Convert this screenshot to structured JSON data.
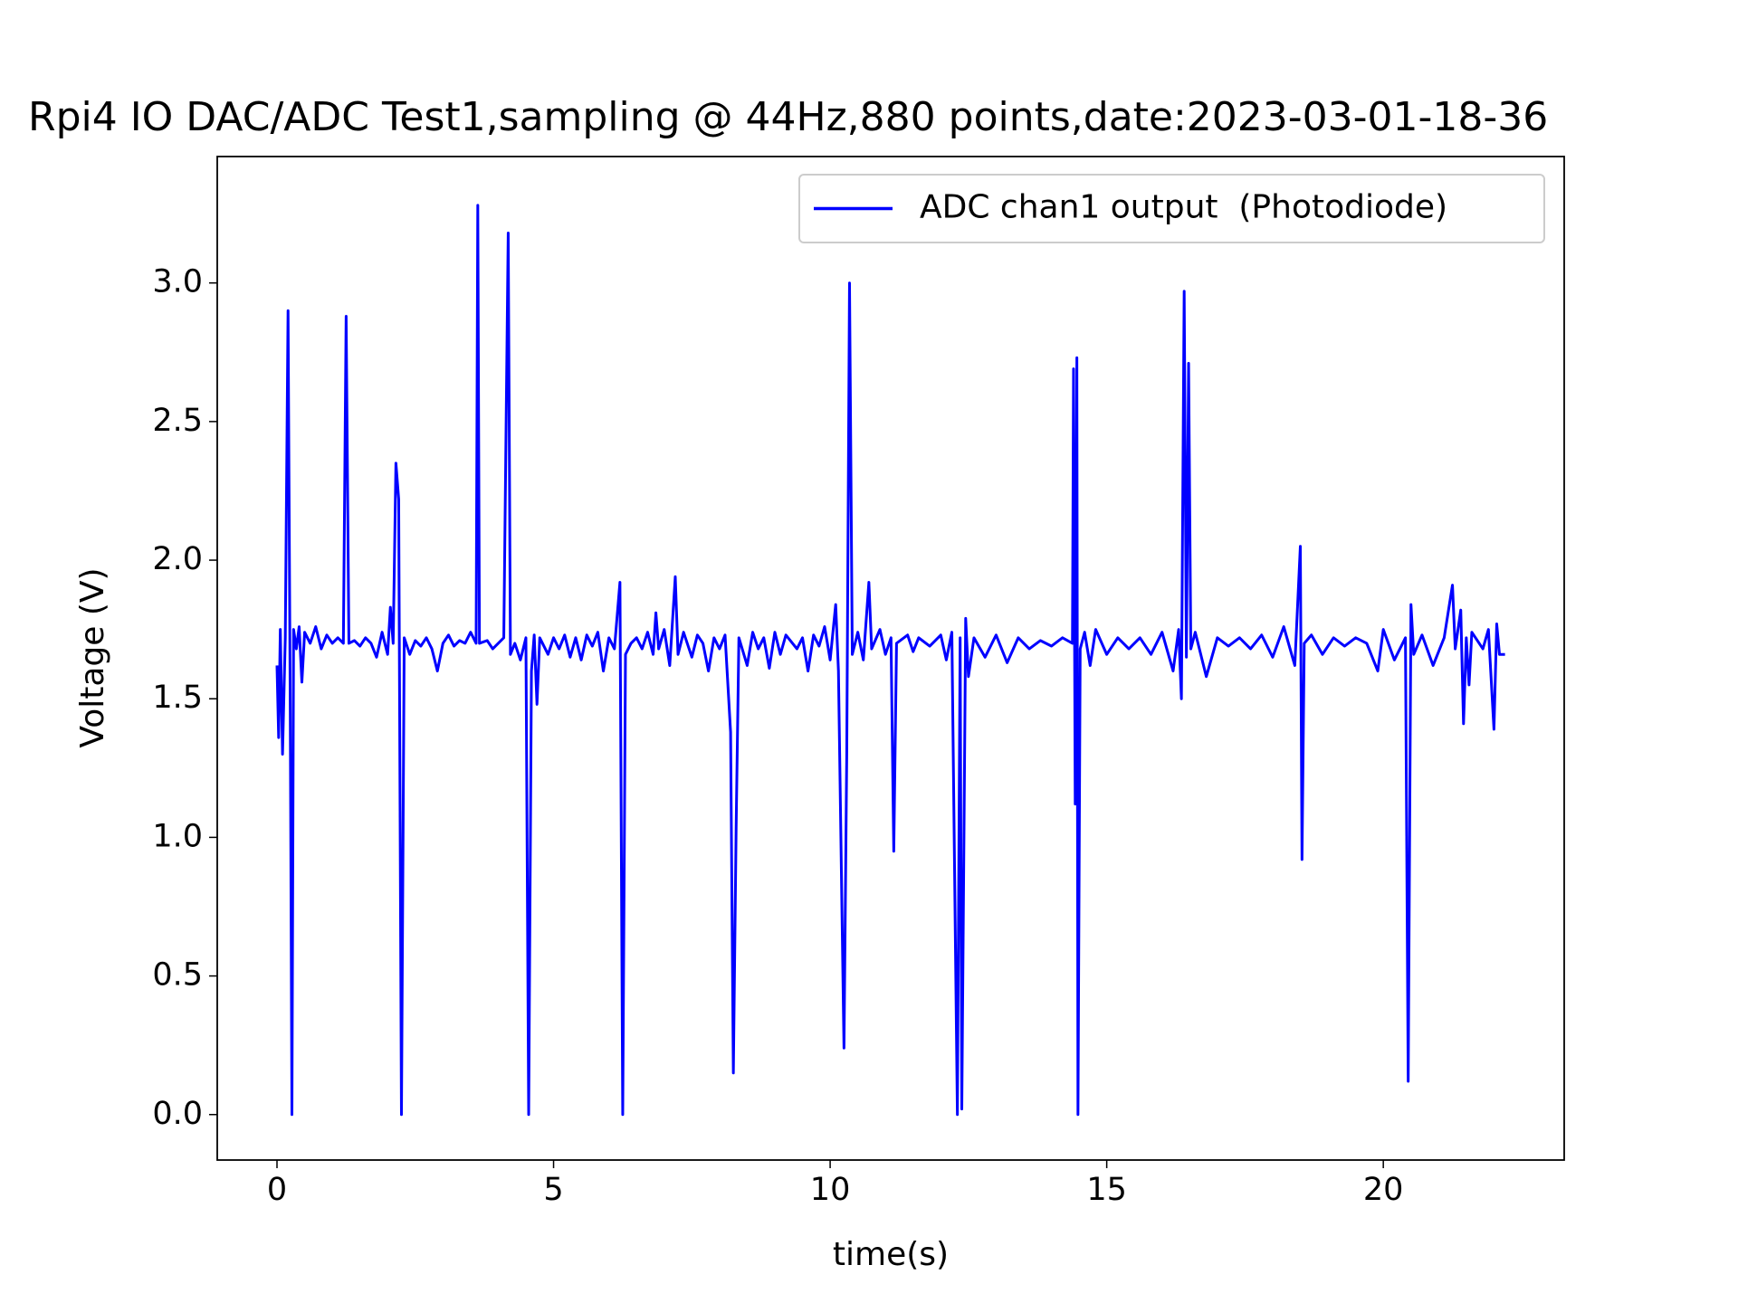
{
  "chart_data": {
    "type": "line",
    "title": "Rpi4 IO DAC/ADC Test1,sampling @ 44Hz,880 points,date:2023-03-01-18-36",
    "x_label": "time(s)",
    "y_label": "Voltage (V)",
    "legend": "upper right",
    "x": [
      0,
      0.03,
      0.06,
      0.1,
      0.15,
      0.2,
      0.24,
      0.27,
      0.3,
      0.35,
      0.4,
      0.45,
      0.5,
      0.6,
      0.7,
      0.8,
      0.9,
      1.0,
      1.1,
      1.2,
      1.25,
      1.3,
      1.4,
      1.5,
      1.6,
      1.7,
      1.8,
      1.9,
      2.0,
      2.05,
      2.1,
      2.15,
      2.2,
      2.25,
      2.3,
      2.4,
      2.5,
      2.6,
      2.7,
      2.8,
      2.9,
      3.0,
      3.1,
      3.2,
      3.3,
      3.4,
      3.5,
      3.6,
      3.63,
      3.66,
      3.8,
      3.9,
      4.0,
      4.1,
      4.18,
      4.22,
      4.3,
      4.4,
      4.5,
      4.55,
      4.6,
      4.65,
      4.7,
      4.75,
      4.9,
      5.0,
      5.1,
      5.2,
      5.3,
      5.4,
      5.5,
      5.6,
      5.7,
      5.8,
      5.9,
      6.0,
      6.1,
      6.2,
      6.25,
      6.3,
      6.4,
      6.5,
      6.6,
      6.7,
      6.8,
      6.85,
      6.9,
      7.0,
      7.1,
      7.2,
      7.25,
      7.35,
      7.5,
      7.6,
      7.7,
      7.8,
      7.9,
      8.0,
      8.1,
      8.2,
      8.25,
      8.3,
      8.35,
      8.5,
      8.6,
      8.7,
      8.8,
      8.9,
      9.0,
      9.1,
      9.2,
      9.4,
      9.5,
      9.6,
      9.7,
      9.8,
      9.9,
      10.0,
      10.1,
      10.15,
      10.25,
      10.3,
      10.35,
      10.4,
      10.5,
      10.6,
      10.7,
      10.75,
      10.9,
      11.0,
      11.1,
      11.15,
      11.2,
      11.4,
      11.5,
      11.6,
      11.8,
      12.0,
      12.1,
      12.2,
      12.3,
      12.35,
      12.38,
      12.45,
      12.5,
      12.6,
      12.8,
      13.0,
      13.2,
      13.4,
      13.6,
      13.8,
      14.0,
      14.2,
      14.38,
      14.4,
      14.43,
      14.46,
      14.48,
      14.52,
      14.6,
      14.7,
      14.8,
      15.0,
      15.2,
      15.4,
      15.6,
      15.8,
      16.0,
      16.2,
      16.3,
      16.35,
      16.4,
      16.44,
      16.48,
      16.52,
      16.6,
      16.8,
      17.0,
      17.2,
      17.4,
      17.6,
      17.8,
      18.0,
      18.2,
      18.4,
      18.5,
      18.53,
      18.57,
      18.7,
      18.9,
      19.1,
      19.3,
      19.5,
      19.7,
      19.9,
      20.0,
      20.2,
      20.4,
      20.45,
      20.5,
      20.55,
      20.7,
      20.9,
      21.1,
      21.25,
      21.3,
      21.4,
      21.45,
      21.5,
      21.55,
      21.6,
      21.8,
      21.9,
      22.0,
      22.05,
      22.1,
      22.2
    ],
    "series": [
      {
        "name": "ADC chan1 output  (Photodiode)",
        "color": "#0000ff",
        "values": [
          1.62,
          1.36,
          1.75,
          1.3,
          1.72,
          2.9,
          1.45,
          0.0,
          1.75,
          1.68,
          1.76,
          1.56,
          1.74,
          1.7,
          1.76,
          1.68,
          1.73,
          1.7,
          1.72,
          1.7,
          2.88,
          1.7,
          1.71,
          1.69,
          1.72,
          1.7,
          1.65,
          1.74,
          1.66,
          1.83,
          1.7,
          2.35,
          2.22,
          0.0,
          1.72,
          1.66,
          1.71,
          1.69,
          1.72,
          1.68,
          1.6,
          1.7,
          1.73,
          1.69,
          1.71,
          1.7,
          1.74,
          1.7,
          3.28,
          1.7,
          1.71,
          1.68,
          1.7,
          1.72,
          3.18,
          1.66,
          1.7,
          1.64,
          1.72,
          0.0,
          1.6,
          1.73,
          1.48,
          1.72,
          1.66,
          1.72,
          1.68,
          1.73,
          1.65,
          1.72,
          1.64,
          1.73,
          1.69,
          1.74,
          1.6,
          1.72,
          1.68,
          1.92,
          0.0,
          1.66,
          1.7,
          1.72,
          1.68,
          1.74,
          1.66,
          1.81,
          1.68,
          1.75,
          1.62,
          1.94,
          1.66,
          1.74,
          1.65,
          1.73,
          1.7,
          1.6,
          1.72,
          1.68,
          1.73,
          1.38,
          0.15,
          1.03,
          1.72,
          1.62,
          1.74,
          1.68,
          1.72,
          1.61,
          1.74,
          1.66,
          1.73,
          1.68,
          1.72,
          1.6,
          1.73,
          1.69,
          1.76,
          1.64,
          1.84,
          1.6,
          0.24,
          1.3,
          3.0,
          1.66,
          1.74,
          1.64,
          1.92,
          1.68,
          1.75,
          1.66,
          1.72,
          0.95,
          1.7,
          1.73,
          1.67,
          1.72,
          1.69,
          1.73,
          1.64,
          1.74,
          0.0,
          1.72,
          0.02,
          1.79,
          1.58,
          1.72,
          1.65,
          1.73,
          1.63,
          1.72,
          1.68,
          1.71,
          1.69,
          1.72,
          1.7,
          2.69,
          1.12,
          2.73,
          0.0,
          1.68,
          1.74,
          1.62,
          1.75,
          1.66,
          1.72,
          1.68,
          1.72,
          1.66,
          1.74,
          1.6,
          1.75,
          1.5,
          2.97,
          1.65,
          2.71,
          1.68,
          1.74,
          1.58,
          1.72,
          1.69,
          1.72,
          1.68,
          1.73,
          1.65,
          1.76,
          1.62,
          2.05,
          0.92,
          1.7,
          1.73,
          1.66,
          1.72,
          1.69,
          1.72,
          1.7,
          1.6,
          1.75,
          1.64,
          1.72,
          0.12,
          1.84,
          1.66,
          1.73,
          1.62,
          1.72,
          1.91,
          1.68,
          1.82,
          1.41,
          1.72,
          1.55,
          1.74,
          1.68,
          1.75,
          1.39,
          1.77,
          1.66,
          1.66
        ]
      }
    ],
    "xlim": [
      -1.08,
      23.27
    ],
    "ylim": [
      -0.164,
      3.456
    ],
    "xticks": [
      0,
      5,
      10,
      15,
      20
    ],
    "yticks": [
      {
        "value": 0,
        "label": "0.0"
      },
      0.5,
      {
        "value": 1,
        "label": "1.0"
      },
      1.5,
      {
        "value": 2,
        "label": "2.0"
      },
      2.5,
      {
        "value": 3,
        "label": "3.0"
      }
    ]
  }
}
